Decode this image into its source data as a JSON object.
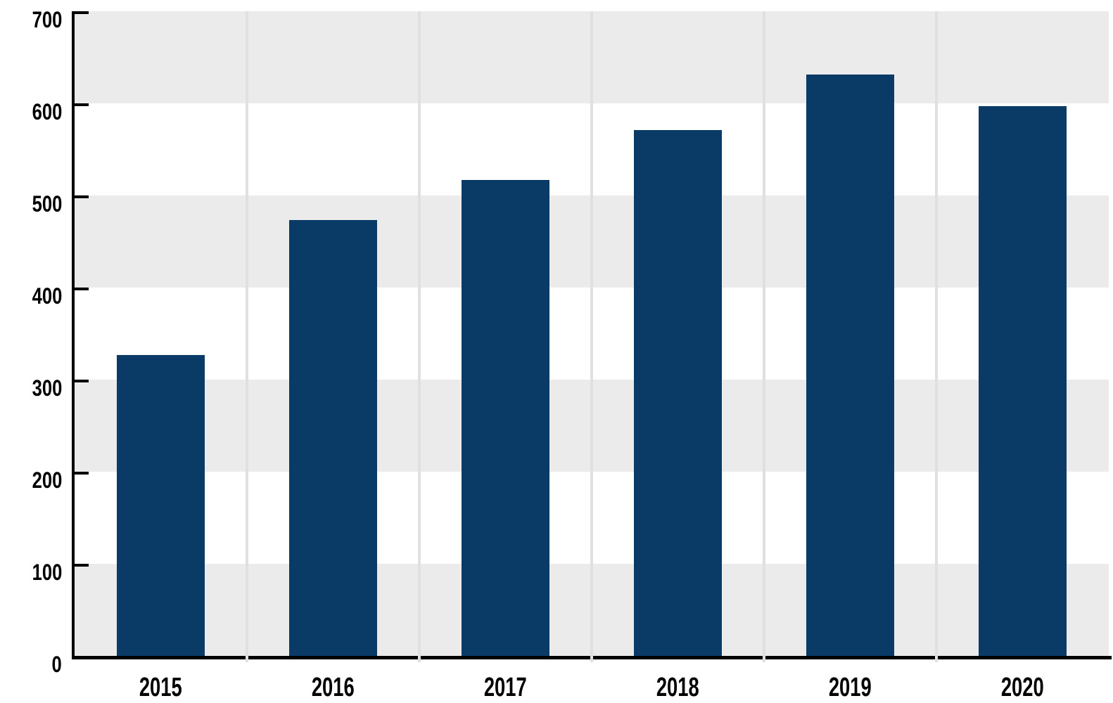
{
  "chart_data": {
    "type": "bar",
    "title": "",
    "xlabel": "",
    "ylabel": "",
    "categories": [
      "2015",
      "2016",
      "2017",
      "2018",
      "2019",
      "2020"
    ],
    "values": [
      327,
      473,
      517,
      571,
      631,
      597
    ],
    "ylim": [
      0,
      700
    ],
    "yticks": [
      0,
      100,
      200,
      300,
      400,
      500,
      600,
      700
    ],
    "legend": "none",
    "grid": {
      "horizontal_bands": "alternating gray/white every 100 units, gray band touching baseline",
      "vertical_separators": "light gray line between each category, extending slightly below x-axis"
    },
    "axis_style": {
      "y_ticks_direction": "inward-right",
      "x_axis_line": true,
      "y_axis_line": true
    },
    "colors": {
      "bar": "#0a3b66",
      "band_gray": "#ebebeb",
      "band_white": "#ffffff",
      "gridline": "#e0e0e0",
      "axis": "#000000",
      "label": "#000000",
      "background": "#ffffff"
    }
  }
}
